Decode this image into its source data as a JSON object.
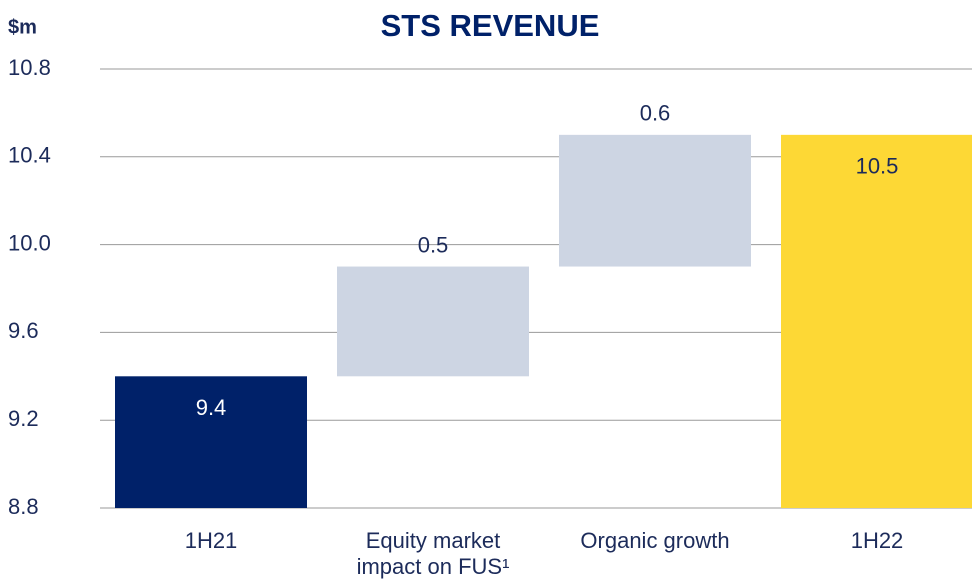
{
  "chart_data": {
    "type": "waterfall",
    "title": "STS REVENUE",
    "y_label": "$m",
    "categories": [
      "1H21",
      "Equity market impact on FUS¹",
      "Organic growth",
      "1H22"
    ],
    "values": [
      9.4,
      0.5,
      0.6,
      10.5
    ],
    "colors": [
      "#002169",
      "#cdd5e3",
      "#cdd5e3",
      "#fdd835"
    ],
    "ylim": [
      8.8,
      10.8
    ],
    "yticks": [
      8.8,
      9.2,
      9.6,
      {
        "value": 10,
        "label": "10.0"
      },
      10.4,
      10.8
    ],
    "grid": true
  }
}
